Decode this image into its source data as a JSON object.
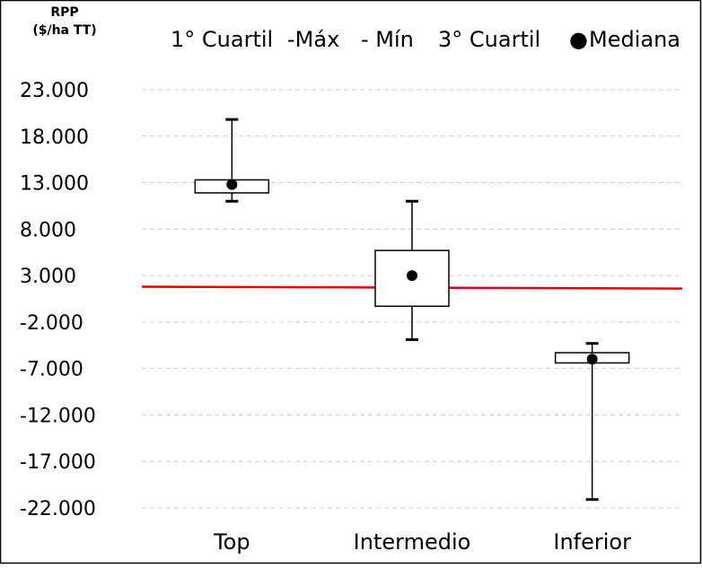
{
  "chart_data": {
    "type": "boxplot",
    "ylabel": [
      "RPP",
      "($/ha TT)"
    ],
    "legend": [
      "1° Cuartil",
      "-Máx",
      "- Mín",
      "3° Cuartil",
      "Mediana"
    ],
    "legend_marker": "●",
    "ylim": [
      -22000,
      23000
    ],
    "yticks": [
      23000,
      18000,
      13000,
      8000,
      3000,
      -2000,
      -7000,
      -12000,
      -17000,
      -22000
    ],
    "ytick_labels": [
      "23.000",
      "18.000",
      "13.000",
      "8.000",
      "3.000",
      "-2.000",
      "-7.000",
      "-12.000",
      "-17.000",
      "-22.000"
    ],
    "categories": [
      "Top",
      "Intermedio",
      "Inferior"
    ],
    "boxes": [
      {
        "category": "Top",
        "min": 11000,
        "q1": 11900,
        "median": 12800,
        "q3": 13300,
        "max": 19800
      },
      {
        "category": "Intermedio",
        "min": -3900,
        "q1": -300,
        "median": 3000,
        "q3": 5700,
        "max": 11000
      },
      {
        "category": "Inferior",
        "min": -21100,
        "q1": -6400,
        "median": -6000,
        "q3": -5300,
        "max": -4300
      }
    ],
    "reference_line": {
      "start": 1800,
      "end": 1600,
      "color": "#e00000"
    },
    "grid": true,
    "legend_position": "top"
  }
}
